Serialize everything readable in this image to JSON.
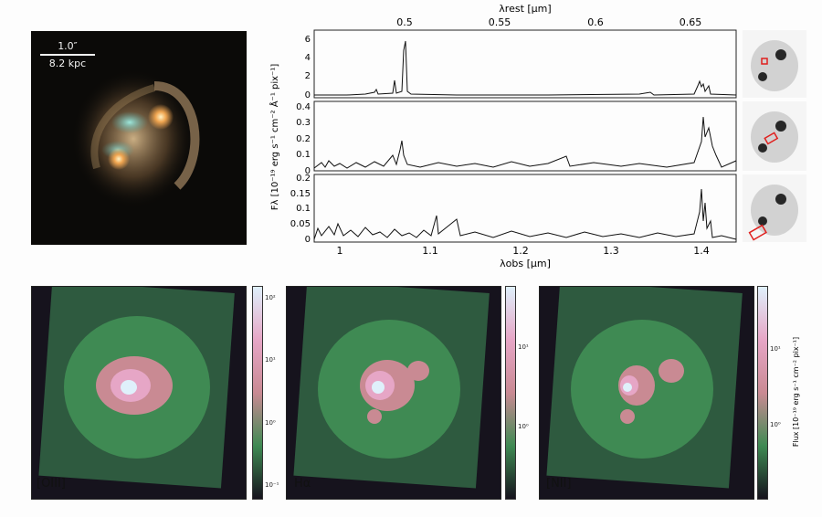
{
  "hst_panel": {
    "scale_arcsec": "1.0″",
    "scale_kpc": "8.2 kpc"
  },
  "spectrum": {
    "top_axis_label": "λrest [μm]",
    "top_ticks": [
      "0.5",
      "0.55",
      "0.6",
      "0.65"
    ],
    "bottom_axis_label": "λobs [μm]",
    "bottom_ticks": [
      "1",
      "1.1",
      "1.2",
      "1.3",
      "1.4"
    ],
    "y_label": "Fλ [10⁻¹⁹ erg s⁻¹ cm⁻² Å⁻¹ pix⁻¹]",
    "panel1_ticks": [
      "6",
      "4",
      "2",
      "0"
    ],
    "panel2_ticks": [
      "0.4",
      "0.3",
      "0.2",
      "0.1",
      "0"
    ],
    "panel3_ticks": [
      "0.2",
      "0.15",
      "0.1",
      "0.05",
      "0"
    ]
  },
  "maps": [
    {
      "label": "[OIII]",
      "cbar_ticks": [
        "10²",
        "10¹",
        "10⁰",
        "10⁻¹"
      ]
    },
    {
      "label": "Hα",
      "cbar_ticks": [
        "10¹",
        "10⁰"
      ]
    },
    {
      "label": "[NII]",
      "cbar_ticks": [
        "10¹",
        "10⁰"
      ]
    }
  ],
  "colorbar_title": "Flux [10⁻¹⁹ erg s⁻¹ cm⁻² pix⁻¹]",
  "colors": {
    "aperture": "#e0201e",
    "map_low": "#14101c",
    "map_mid": "#3f8a53",
    "map_high": "#e6a6c6",
    "map_peak": "#dff0fb"
  }
}
